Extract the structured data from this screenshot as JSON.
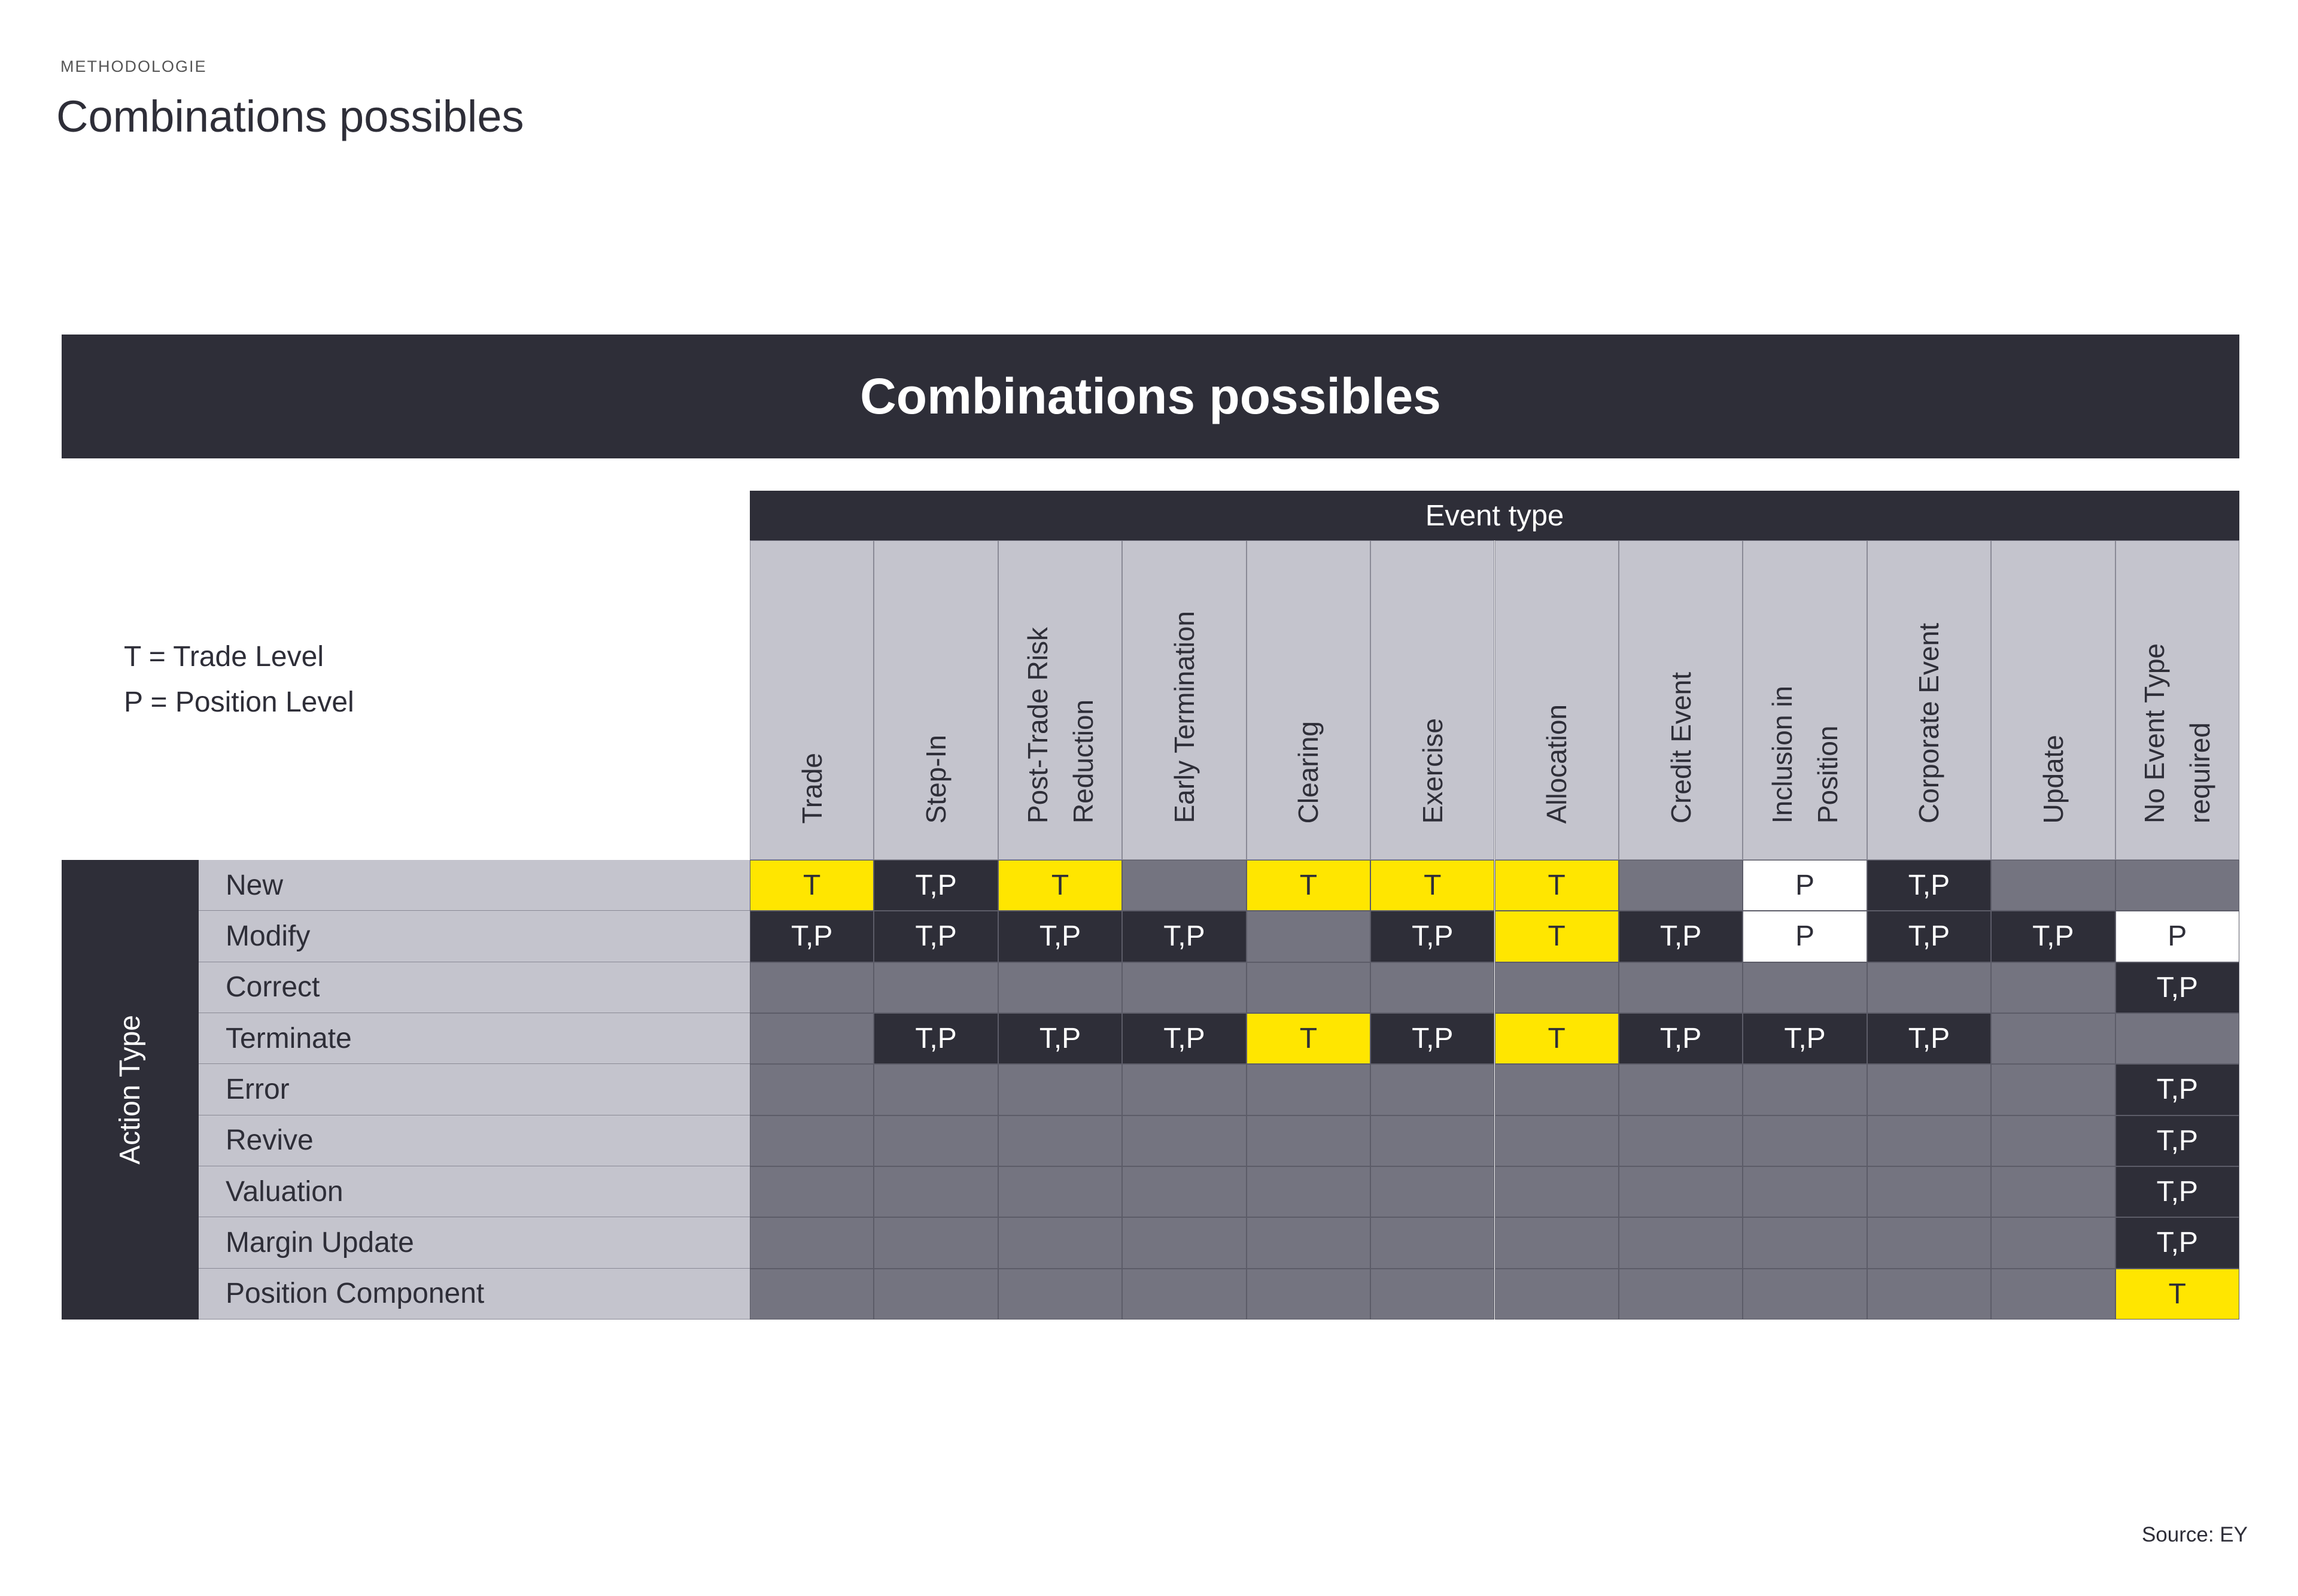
{
  "header": {
    "section": "METHODOLOGIE",
    "title": "Combinations possibles"
  },
  "banner": "Combinations possibles",
  "legend": [
    "T = Trade Level",
    "P = Position Level"
  ],
  "table": {
    "column_group": "Event type",
    "row_group": "Action Type",
    "columns": [
      [
        "Trade"
      ],
      [
        "Step-In"
      ],
      [
        "Post-Trade Risk",
        "Reduction"
      ],
      [
        "Early Termination"
      ],
      [
        "Clearing"
      ],
      [
        "Exercise"
      ],
      [
        "Allocation"
      ],
      [
        "Credit Event"
      ],
      [
        "Inclusion in",
        "Position"
      ],
      [
        "Corporate Event"
      ],
      [
        "Update"
      ],
      [
        "No Event Type",
        "required"
      ]
    ],
    "rows": [
      {
        "label": "New",
        "cells": [
          "T",
          "T,P",
          "T",
          null,
          "T",
          "T",
          "T",
          null,
          "P",
          "T,P",
          null,
          null
        ]
      },
      {
        "label": "Modify",
        "cells": [
          "T,P",
          "T,P",
          "T,P",
          "T,P",
          null,
          "T,P",
          "T",
          "T,P",
          "P",
          "T,P",
          "T,P",
          "P"
        ]
      },
      {
        "label": "Correct",
        "cells": [
          null,
          null,
          null,
          null,
          null,
          null,
          null,
          null,
          null,
          null,
          null,
          "T,P"
        ]
      },
      {
        "label": "Terminate",
        "cells": [
          null,
          "T,P",
          "T,P",
          "T,P",
          "T",
          "T,P",
          "T",
          "T,P",
          "T,P",
          "T,P",
          null,
          null
        ]
      },
      {
        "label": "Error",
        "cells": [
          null,
          null,
          null,
          null,
          null,
          null,
          null,
          null,
          null,
          null,
          null,
          "T,P"
        ]
      },
      {
        "label": "Revive",
        "cells": [
          null,
          null,
          null,
          null,
          null,
          null,
          null,
          null,
          null,
          null,
          null,
          "T,P"
        ]
      },
      {
        "label": "Valuation",
        "cells": [
          null,
          null,
          null,
          null,
          null,
          null,
          null,
          null,
          null,
          null,
          null,
          "T,P"
        ]
      },
      {
        "label": "Margin Update",
        "cells": [
          null,
          null,
          null,
          null,
          null,
          null,
          null,
          null,
          null,
          null,
          null,
          "T,P"
        ]
      },
      {
        "label": "Position Component",
        "cells": [
          null,
          null,
          null,
          null,
          null,
          null,
          null,
          null,
          null,
          null,
          null,
          "T"
        ]
      }
    ]
  },
  "source": "Source: EY"
}
